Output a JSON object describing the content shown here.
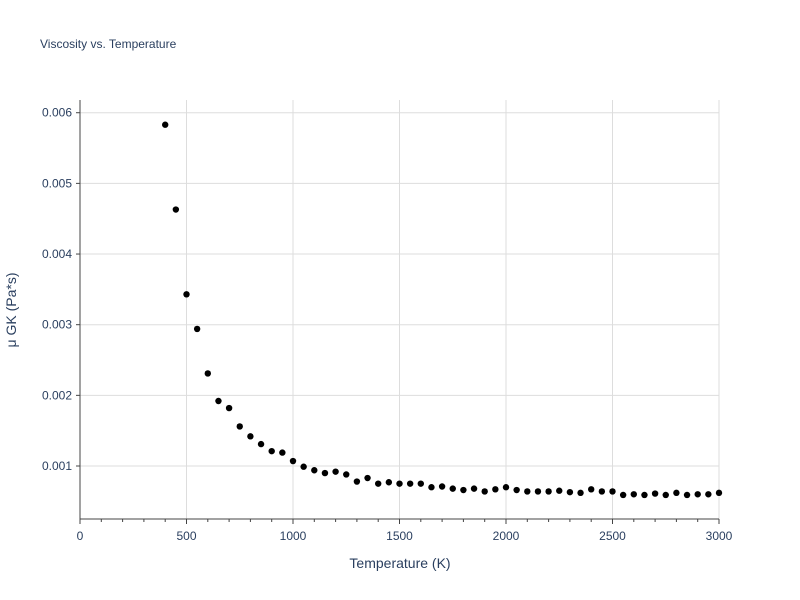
{
  "chart_data": {
    "type": "scatter",
    "title": "Viscosity vs. Temperature",
    "xlabel": "Temperature (K)",
    "ylabel": "μ GK (Pa*s)",
    "xlim": [
      0,
      3000
    ],
    "ylim": [
      0.00025,
      0.00618
    ],
    "grid": true,
    "marker_color": "#000000",
    "xticks": [
      0,
      500,
      1000,
      1500,
      2000,
      2500,
      3000
    ],
    "xtick_labels": [
      "0",
      "500",
      "1000",
      "1500",
      "2000",
      "2500",
      "3000"
    ],
    "yticks": [
      0.001,
      0.002,
      0.003,
      0.004,
      0.005,
      0.006
    ],
    "ytick_labels": [
      "0.001",
      "0.002",
      "0.003",
      "0.004",
      "0.005",
      "0.006"
    ],
    "x": [
      400,
      450,
      500,
      550,
      600,
      650,
      700,
      750,
      800,
      850,
      900,
      950,
      1000,
      1050,
      1100,
      1150,
      1200,
      1250,
      1300,
      1350,
      1400,
      1450,
      1500,
      1550,
      1600,
      1650,
      1700,
      1750,
      1800,
      1850,
      1900,
      1950,
      2000,
      2050,
      2100,
      2150,
      2200,
      2250,
      2300,
      2350,
      2400,
      2450,
      2500,
      2550,
      2600,
      2650,
      2700,
      2750,
      2800,
      2850,
      2900,
      2950,
      3000
    ],
    "y": [
      0.00583,
      0.00463,
      0.00343,
      0.00294,
      0.00231,
      0.00192,
      0.00182,
      0.00156,
      0.00142,
      0.00131,
      0.00121,
      0.00119,
      0.00107,
      0.00099,
      0.00094,
      0.0009,
      0.00092,
      0.00088,
      0.00078,
      0.00083,
      0.00075,
      0.00077,
      0.00075,
      0.00075,
      0.00075,
      0.0007,
      0.00071,
      0.00068,
      0.00066,
      0.00068,
      0.00064,
      0.00067,
      0.0007,
      0.00066,
      0.00064,
      0.00064,
      0.00064,
      0.00065,
      0.00063,
      0.00062,
      0.00067,
      0.00064,
      0.00064,
      0.00059,
      0.0006,
      0.00059,
      0.00061,
      0.00059,
      0.00062,
      0.00059,
      0.0006,
      0.0006,
      0.00062
    ]
  }
}
